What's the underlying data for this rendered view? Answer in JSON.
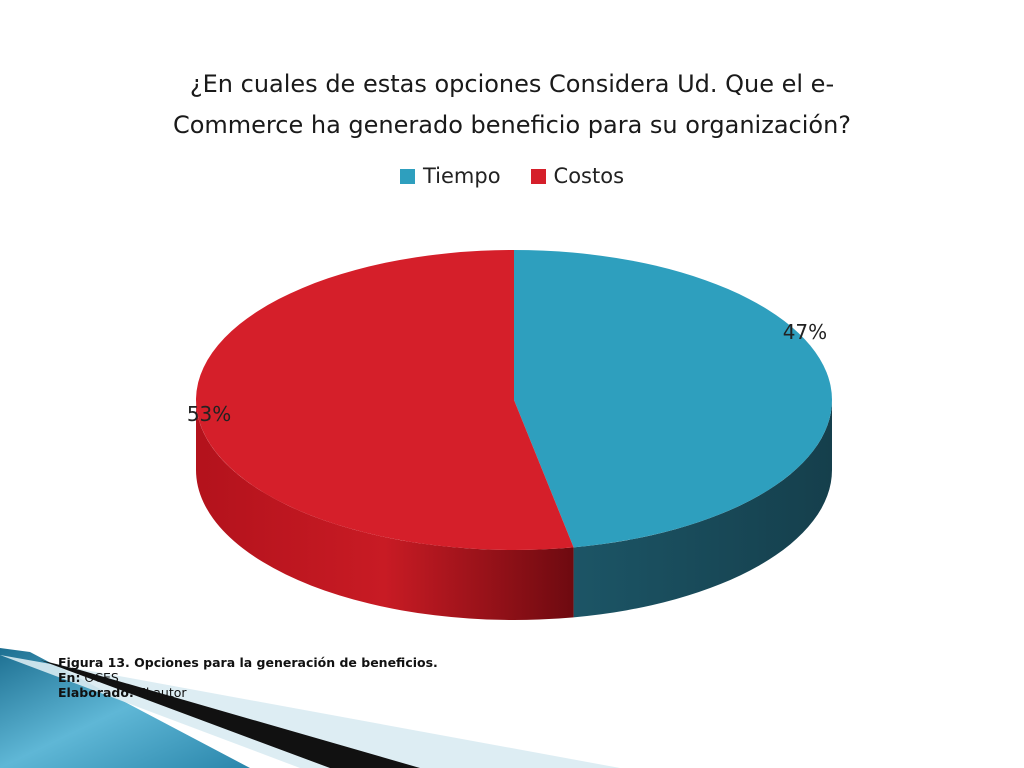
{
  "chart_data": {
    "type": "pie",
    "title_lines": [
      "¿En cuales de estas opciones  Considera Ud. Que el e-",
      "Commerce ha generado beneficio para su organización?"
    ],
    "categories": [
      "Tiempo",
      "Costos"
    ],
    "values": [
      47,
      53
    ],
    "labels": [
      "47%",
      "53%"
    ],
    "colors": [
      "#2E9FBE",
      "#D51F2A"
    ],
    "legend_position": "top"
  },
  "caption": {
    "figure": "Figura 13. Opciones para la generación de beneficios.",
    "source_label": "En:",
    "source_value": "OCES",
    "author_label": "Elaborado:",
    "author_value": "El autor"
  }
}
